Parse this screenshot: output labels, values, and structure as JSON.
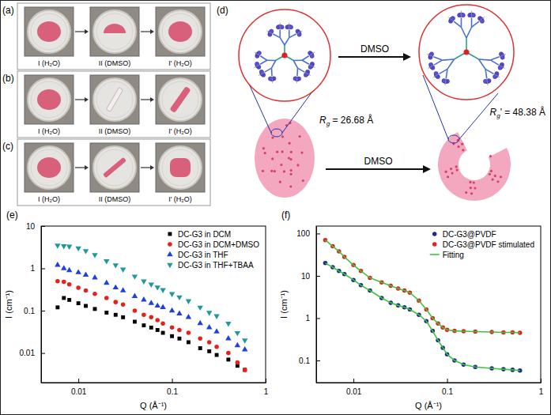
{
  "figure": {
    "photo_panels": [
      {
        "label": "(a)",
        "captions": [
          "I (H₂O)",
          "II (DMSO)",
          "I' (H₂O)"
        ]
      },
      {
        "label": "(b)",
        "captions": [
          "I (H₂O)",
          "II (DMSO)",
          "I' (H₂O)"
        ]
      },
      {
        "label": "(c)",
        "captions": [
          "I (H₂O)",
          "II (DMSO)",
          "I' (H₂O)"
        ]
      }
    ],
    "diagram": {
      "label": "(d)",
      "arrow_labels": [
        "DMSO",
        "DMSO"
      ],
      "radii": [
        {
          "symbol": "R",
          "subscript": "g",
          "rest": " = 26.68 Å"
        },
        {
          "symbol": "R",
          "subscript": "g",
          "rest": "' = 48.38 Å"
        }
      ]
    }
  },
  "chart_data": [
    {
      "type": "scatter",
      "title": "(e)",
      "xlabel": "Q (Å⁻¹)",
      "ylabel": "I (cm⁻¹)",
      "log": true,
      "xlim": [
        0.004,
        1
      ],
      "ylim": [
        0.002,
        10
      ],
      "xticks": [
        0.01,
        0.1,
        1
      ],
      "yticks": [
        0.01,
        0.1,
        1,
        10
      ],
      "legend": "upper right",
      "series": [
        {
          "name": "DC-G3 in DCM",
          "color": "#000000",
          "marker": "square",
          "x": [
            0.006,
            0.007,
            0.008,
            0.01,
            0.012,
            0.015,
            0.02,
            0.025,
            0.03,
            0.04,
            0.05,
            0.06,
            0.07,
            0.08,
            0.1,
            0.12,
            0.15,
            0.2,
            0.25,
            0.3,
            0.4,
            0.5,
            0.6
          ],
          "values": [
            0.12,
            0.2,
            0.18,
            0.15,
            0.13,
            0.11,
            0.09,
            0.08,
            0.07,
            0.055,
            0.045,
            0.04,
            0.035,
            0.03,
            0.025,
            0.022,
            0.018,
            0.013,
            0.011,
            0.009,
            0.007,
            0.005,
            0.004
          ]
        },
        {
          "name": "DC-G3 in DCM+DMSO",
          "color": "#e8201c",
          "marker": "circle",
          "x": [
            0.006,
            0.007,
            0.008,
            0.01,
            0.012,
            0.015,
            0.02,
            0.025,
            0.03,
            0.04,
            0.05,
            0.06,
            0.07,
            0.08,
            0.1,
            0.12,
            0.15,
            0.2,
            0.25,
            0.3,
            0.4,
            0.5,
            0.6
          ],
          "values": [
            0.5,
            0.48,
            0.42,
            0.35,
            0.3,
            0.25,
            0.2,
            0.16,
            0.14,
            0.1,
            0.08,
            0.07,
            0.06,
            0.05,
            0.04,
            0.035,
            0.03,
            0.022,
            0.018,
            0.014,
            0.01,
            0.006,
            0.004
          ]
        },
        {
          "name": "DC-G3 in THF",
          "color": "#1f3fe0",
          "marker": "triangle-up",
          "x": [
            0.006,
            0.007,
            0.008,
            0.01,
            0.012,
            0.015,
            0.02,
            0.025,
            0.03,
            0.04,
            0.05,
            0.06,
            0.07,
            0.08,
            0.1,
            0.12,
            0.15,
            0.2,
            0.25,
            0.3,
            0.4,
            0.5,
            0.6
          ],
          "values": [
            1.2,
            1.0,
            0.9,
            0.8,
            0.7,
            0.6,
            0.45,
            0.35,
            0.3,
            0.22,
            0.18,
            0.15,
            0.13,
            0.12,
            0.1,
            0.085,
            0.07,
            0.05,
            0.04,
            0.032,
            0.022,
            0.015,
            0.012
          ]
        },
        {
          "name": "DC-G3 in THF+TBAA",
          "color": "#1f9a9a",
          "marker": "triangle-down",
          "x": [
            0.006,
            0.007,
            0.008,
            0.01,
            0.012,
            0.015,
            0.02,
            0.025,
            0.03,
            0.04,
            0.05,
            0.06,
            0.07,
            0.08,
            0.1,
            0.12,
            0.15,
            0.2,
            0.25,
            0.3,
            0.4,
            0.5,
            0.6
          ],
          "values": [
            3.5,
            3.4,
            3.3,
            3.0,
            2.6,
            2.1,
            1.5,
            1.2,
            0.95,
            0.65,
            0.5,
            0.42,
            0.36,
            0.31,
            0.25,
            0.21,
            0.17,
            0.12,
            0.09,
            0.075,
            0.05,
            0.03,
            0.02
          ]
        }
      ]
    },
    {
      "type": "scatter",
      "title": "(f)",
      "xlabel": "Q (Å⁻¹)",
      "ylabel": "I (cm⁻¹)",
      "log": true,
      "xlim": [
        0.004,
        1
      ],
      "ylim": [
        0.03,
        150
      ],
      "xticks": [
        0.01,
        0.1,
        1
      ],
      "yticks": [
        0.1,
        1,
        10,
        100
      ],
      "legend": "upper right",
      "series": [
        {
          "name": "DC-G3@PVDF",
          "color": "#1c2a8c",
          "marker": "circle",
          "x": [
            0.005,
            0.006,
            0.007,
            0.008,
            0.01,
            0.012,
            0.015,
            0.02,
            0.025,
            0.03,
            0.035,
            0.04,
            0.05,
            0.06,
            0.07,
            0.08,
            0.09,
            0.1,
            0.12,
            0.15,
            0.2,
            0.3,
            0.4,
            0.5,
            0.6
          ],
          "values": [
            20,
            16,
            13,
            11,
            8,
            6,
            4.5,
            3,
            2.3,
            2,
            1.8,
            1.6,
            1.2,
            0.85,
            0.5,
            0.3,
            0.2,
            0.14,
            0.1,
            0.08,
            0.07,
            0.065,
            0.062,
            0.06,
            0.058
          ]
        },
        {
          "name": "DC-G3@PVDF stimulated",
          "color": "#e8201c",
          "marker": "circle",
          "x": [
            0.005,
            0.006,
            0.007,
            0.008,
            0.01,
            0.012,
            0.015,
            0.02,
            0.025,
            0.03,
            0.035,
            0.04,
            0.05,
            0.06,
            0.07,
            0.08,
            0.09,
            0.1,
            0.12,
            0.15,
            0.2,
            0.3,
            0.4,
            0.5,
            0.6
          ],
          "values": [
            70,
            50,
            38,
            28,
            18,
            13,
            9,
            7,
            5.8,
            5,
            4.5,
            4,
            2.6,
            1.6,
            1.0,
            0.75,
            0.6,
            0.53,
            0.5,
            0.49,
            0.48,
            0.47,
            0.46,
            0.46,
            0.45
          ]
        },
        {
          "name": "Fitting",
          "color": "#3fc23f",
          "type": "line",
          "line_style": "solid",
          "x": [
            0.005,
            0.006,
            0.007,
            0.008,
            0.01,
            0.012,
            0.015,
            0.02,
            0.025,
            0.03,
            0.035,
            0.04,
            0.05,
            0.06,
            0.07,
            0.08,
            0.09,
            0.1,
            0.12,
            0.15,
            0.2,
            0.3,
            0.4,
            0.5,
            0.6,
            null,
            0.005,
            0.006,
            0.007,
            0.008,
            0.01,
            0.012,
            0.015,
            0.02,
            0.025,
            0.03,
            0.035,
            0.04,
            0.05,
            0.06,
            0.07,
            0.08,
            0.09,
            0.1,
            0.12,
            0.15,
            0.2,
            0.3,
            0.4,
            0.5,
            0.6
          ],
          "values": [
            20,
            16,
            13,
            11,
            8,
            6,
            4.5,
            3,
            2.3,
            2,
            1.8,
            1.6,
            1.2,
            0.85,
            0.5,
            0.3,
            0.2,
            0.14,
            0.1,
            0.08,
            0.07,
            0.065,
            0.062,
            0.06,
            0.058,
            null,
            70,
            50,
            38,
            28,
            18,
            13,
            9,
            7,
            5.8,
            5,
            4.5,
            4,
            2.6,
            1.6,
            1.0,
            0.75,
            0.6,
            0.53,
            0.5,
            0.49,
            0.48,
            0.47,
            0.46,
            0.46,
            0.45
          ]
        }
      ]
    }
  ]
}
